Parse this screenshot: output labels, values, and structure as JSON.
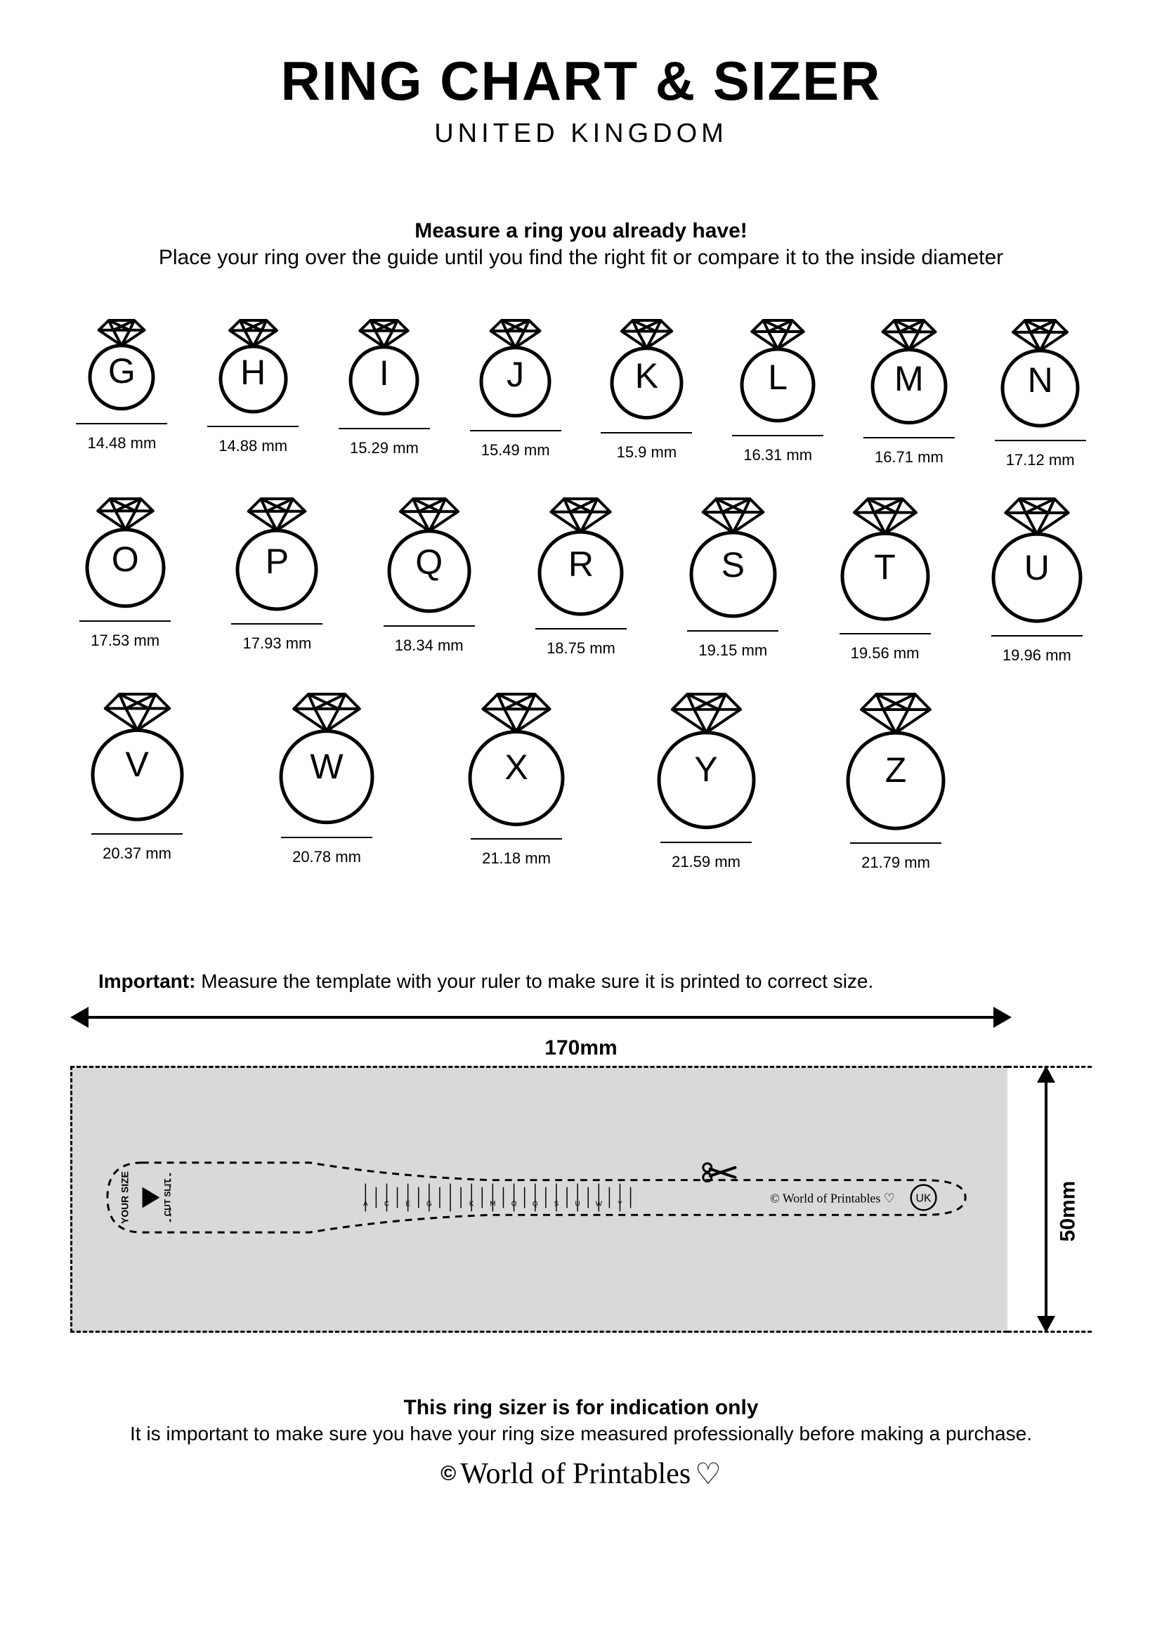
{
  "title": "RING CHART & SIZER",
  "subtitle": "UNITED KINGDOM",
  "instr_bold": "Measure a ring you already have!",
  "instr_sub": "Place your ring over the guide until you find the right fit or compare it to the inside diameter",
  "rings": {
    "row1": [
      {
        "letter": "G",
        "mm": "14.48 mm",
        "d": 90
      },
      {
        "letter": "H",
        "mm": "14.88 mm",
        "d": 93
      },
      {
        "letter": "I",
        "mm": "15.29 mm",
        "d": 95
      },
      {
        "letter": "J",
        "mm": "15.49 mm",
        "d": 97
      },
      {
        "letter": "K",
        "mm": "15.9 mm",
        "d": 99
      },
      {
        "letter": "L",
        "mm": "16.31 mm",
        "d": 102
      },
      {
        "letter": "M",
        "mm": "16.71 mm",
        "d": 104
      },
      {
        "letter": "N",
        "mm": "17.12 mm",
        "d": 107
      }
    ],
    "row2": [
      {
        "letter": "O",
        "mm": "17.53 mm",
        "d": 109
      },
      {
        "letter": "P",
        "mm": "17.93 mm",
        "d": 112
      },
      {
        "letter": "Q",
        "mm": "18.34 mm",
        "d": 114
      },
      {
        "letter": "R",
        "mm": "18.75 mm",
        "d": 117
      },
      {
        "letter": "S",
        "mm": "19.15 mm",
        "d": 119
      },
      {
        "letter": "T",
        "mm": "19.56 mm",
        "d": 122
      },
      {
        "letter": "U",
        "mm": "19.96 mm",
        "d": 124
      }
    ],
    "row3": [
      {
        "letter": "V",
        "mm": "20.37 mm",
        "d": 127
      },
      {
        "letter": "W",
        "mm": "20.78 mm",
        "d": 130
      },
      {
        "letter": "X",
        "mm": "21.18 mm",
        "d": 132
      },
      {
        "letter": "Y",
        "mm": "21.59 mm",
        "d": 135
      },
      {
        "letter": "Z",
        "mm": "21.79 mm",
        "d": 136
      }
    ]
  },
  "important_label": "Important:",
  "important_text": " Measure the template with your ruler to make sure it is printed to correct size.",
  "width_label": "170mm",
  "height_label": "50mm",
  "strip": {
    "your_size": "YOUR SIZE",
    "cut_slit": "CUT SLIT",
    "brand": "World of Printables",
    "badge": "UK",
    "letters": [
      "A",
      "C",
      "E",
      "G",
      "I",
      "K",
      "M",
      "O",
      "Q",
      "S",
      "U",
      "W",
      "Y"
    ]
  },
  "footer_bold": "This ring sizer is for indication only",
  "footer_sub": "It is important to make sure you have your ring size measured professionally before making a purchase.",
  "brand": "World of Printables",
  "colors": {
    "bg": "#ffffff",
    "ink": "#000000",
    "gray": "#d9d9d9"
  }
}
